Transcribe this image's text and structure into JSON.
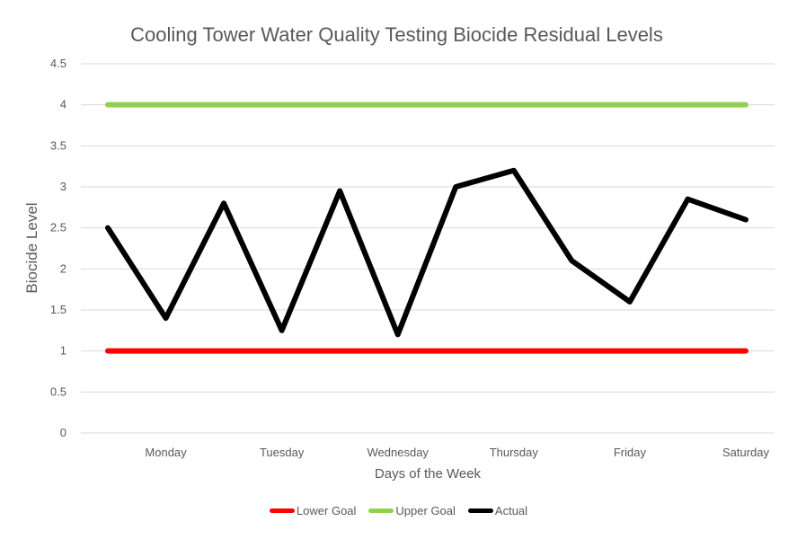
{
  "chart_data": {
    "type": "line",
    "title": "Cooling Tower Water Quality Testing Biocide Residual Levels",
    "xlabel": "Days of the Week",
    "ylabel": "Biocide Level",
    "ylim": [
      0,
      4.5
    ],
    "yticks": [
      "0",
      "0.5",
      "1",
      "1.5",
      "2",
      "2.5",
      "3",
      "3.5",
      "4",
      "4.5"
    ],
    "category_labels": [
      "Monday",
      "Tuesday",
      "Wednesday",
      "Thursday",
      "Friday",
      "Saturday"
    ],
    "x_points": [
      "",
      "Monday",
      "",
      "Tuesday",
      "",
      "Wednesday",
      "",
      "Thursday",
      "",
      "Friday",
      "",
      "Saturday"
    ],
    "grid": true,
    "legend_position": "bottom",
    "series": [
      {
        "name": "Lower Goal",
        "color": "#ff0000",
        "values": [
          1,
          1,
          1,
          1,
          1,
          1,
          1,
          1,
          1,
          1,
          1,
          1
        ]
      },
      {
        "name": "Upper Goal",
        "color": "#92d050",
        "values": [
          4,
          4,
          4,
          4,
          4,
          4,
          4,
          4,
          4,
          4,
          4,
          4
        ]
      },
      {
        "name": "Actual",
        "color": "#000000",
        "values": [
          2.5,
          1.4,
          2.8,
          1.25,
          2.95,
          1.2,
          3.0,
          3.2,
          2.1,
          1.6,
          2.85,
          2.6
        ]
      }
    ]
  }
}
